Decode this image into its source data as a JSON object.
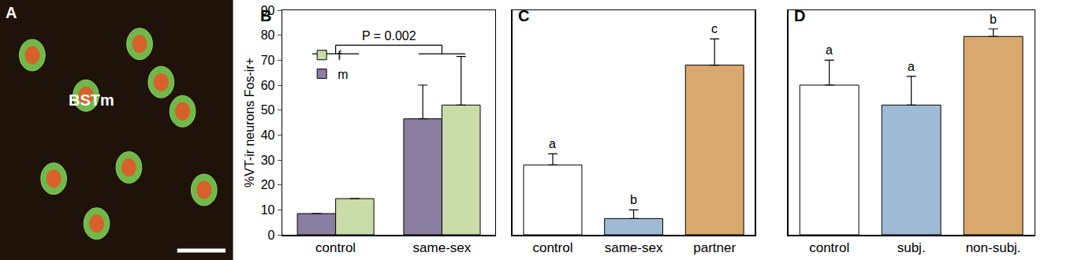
{
  "chart_data": [
    {
      "type": "image",
      "panel_label": "A",
      "annotations": [
        "BSTm"
      ]
    },
    {
      "type": "bar",
      "panel_label": "B",
      "y_label": "%VT-ir neurons Fos-ir+",
      "categories": [
        "control",
        "same-sex"
      ],
      "series": [
        {
          "name": "m",
          "color": "#8a7ea1",
          "values": [
            8.5,
            46.5
          ],
          "errors": [
            null,
            13.5
          ]
        },
        {
          "name": "f",
          "color": "#c9dca9",
          "values": [
            14.5,
            52
          ],
          "errors": [
            null,
            19.5
          ]
        }
      ],
      "ylim": [
        0,
        90
      ],
      "yticks": [
        0,
        10,
        20,
        30,
        40,
        50,
        60,
        70,
        80,
        90
      ],
      "legend": "top left",
      "grid": false,
      "annotations": [
        "P = 0.002"
      ]
    },
    {
      "type": "bar",
      "panel_label": "C",
      "categories": [
        "control",
        "same-sex",
        "partner"
      ],
      "values": [
        28,
        6.5,
        68
      ],
      "errors": [
        4.5,
        3.5,
        10.5
      ],
      "colors": [
        "#ffffff",
        "#9fbad5",
        "#d9a86c"
      ],
      "letters": [
        "a",
        "b",
        "c"
      ],
      "ylim": [
        0,
        90
      ],
      "tick_labels": "x",
      "grid": false
    },
    {
      "type": "bar",
      "panel_label": "D",
      "categories": [
        "control",
        "subj.",
        "non-subj."
      ],
      "values": [
        60,
        52,
        79.5
      ],
      "errors": [
        10,
        11.5,
        3
      ],
      "colors": [
        "#ffffff",
        "#9fbad5",
        "#d9a86c"
      ],
      "letters": [
        "a",
        "a",
        "b"
      ],
      "ylim": [
        0,
        90
      ],
      "tick_labels": "x",
      "grid": false
    }
  ]
}
